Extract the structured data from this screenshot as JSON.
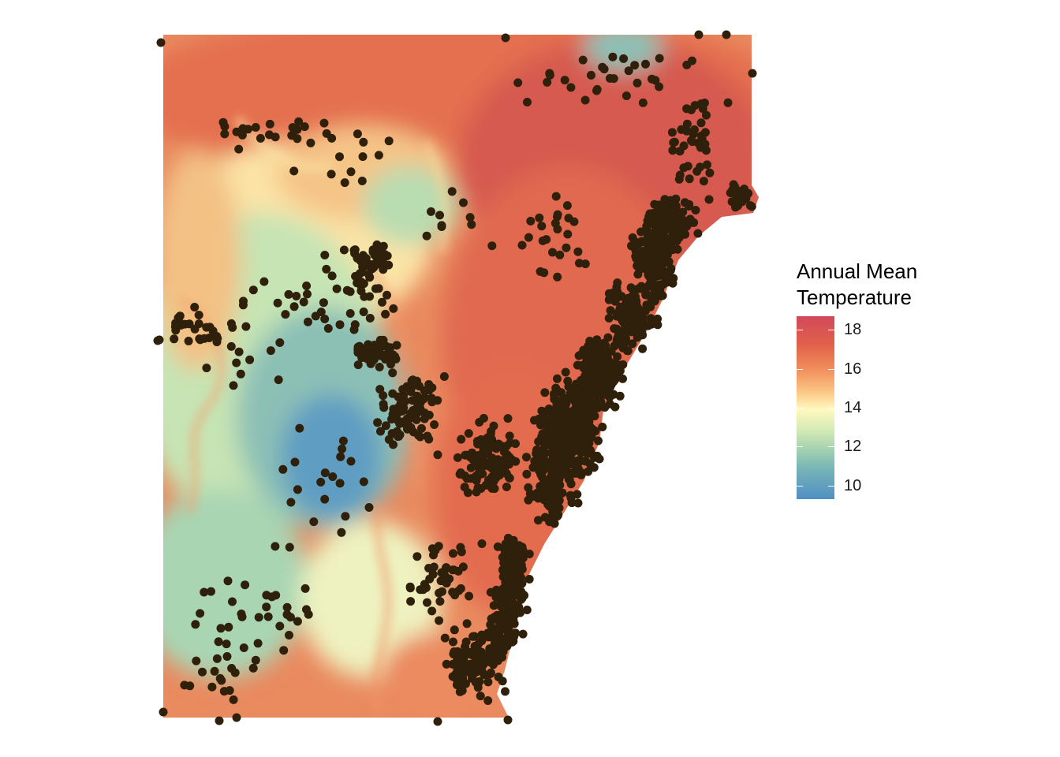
{
  "legend": {
    "title": "Annual Mean\nTemperature",
    "ticks": [
      {
        "label": "18",
        "value": 18
      },
      {
        "label": "16",
        "value": 16
      },
      {
        "label": "14",
        "value": 14
      },
      {
        "label": "12",
        "value": 12
      },
      {
        "label": "10",
        "value": 10
      }
    ],
    "range": [
      9.3,
      18.7
    ]
  },
  "colors": {
    "hot": "#d1495b",
    "warm": "#f08a5a",
    "mid": "#fff9bf",
    "cool": "#75b3b7",
    "cold": "#4f8fc3",
    "points": "#2e200a"
  }
}
